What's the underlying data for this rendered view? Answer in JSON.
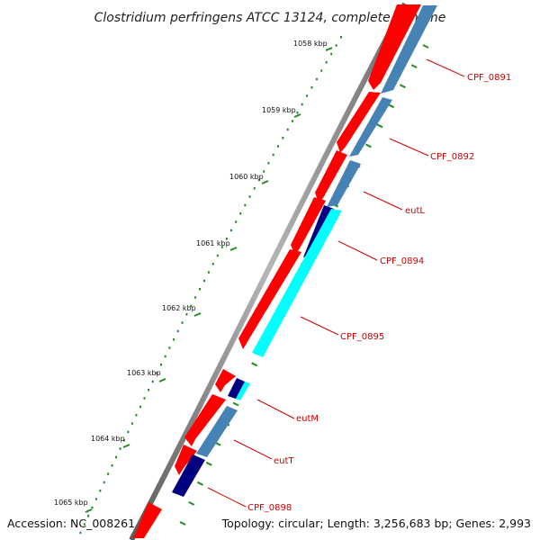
{
  "title": "Clostridium perfringens ATCC 13124, complete genome",
  "footer": {
    "accession": "Accession: NC_008261",
    "summary": "Topology: circular; Length: 3,256,683 bp; Genes: 2,993"
  },
  "colors": {
    "forward_gene": "#ff0000",
    "reverse_gene": "#4682b4",
    "highlight_light": "#00ffff",
    "highlight_dark": "#000080",
    "backbone": "#808080",
    "ticks": "#228b22",
    "label": "#cc0000"
  },
  "kbp_marks": [
    "1058 kbp",
    "1059 kbp",
    "1060 kbp",
    "1061 kbp",
    "1062 kbp",
    "1063 kbp",
    "1064 kbp",
    "1065 kbp"
  ],
  "genes": [
    {
      "label": "CPF_0891",
      "strand": "both"
    },
    {
      "label": "CPF_0892",
      "strand": "both"
    },
    {
      "label": "eutL",
      "strand": "both"
    },
    {
      "label": "CPF_0894",
      "strand": "both"
    },
    {
      "label": "CPF_0895",
      "strand": "both"
    },
    {
      "label": "eutM",
      "strand": "both"
    },
    {
      "label": "eutT",
      "strand": "both"
    },
    {
      "label": "CPF_0898",
      "strand": "both"
    }
  ]
}
